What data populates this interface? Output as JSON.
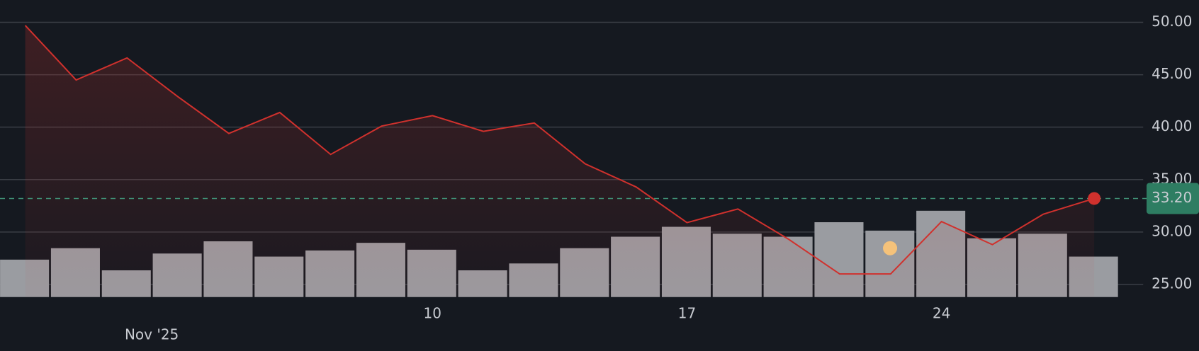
{
  "chart_data": {
    "type": "line",
    "categories": [
      null,
      null,
      null,
      null,
      null,
      null,
      null,
      null,
      "10",
      null,
      null,
      null,
      null,
      "17",
      null,
      null,
      null,
      null,
      "24",
      null,
      null,
      null
    ],
    "period_label": "Nov '25",
    "series": [
      {
        "name": "price",
        "color": "#d0312d",
        "values": [
          49.7,
          44.5,
          46.6,
          42.9,
          39.4,
          41.4,
          37.4,
          40.1,
          41.1,
          39.6,
          40.4,
          36.5,
          34.3,
          30.9,
          32.2,
          29.3,
          26.0,
          26.0,
          31.0,
          28.8,
          31.7,
          33.2
        ]
      },
      {
        "name": "volume",
        "type": "bar",
        "axis": "y2",
        "color": "#9a9ca1",
        "values": [
          49,
          64,
          35,
          57,
          73,
          53,
          61,
          71,
          62,
          35,
          44,
          64,
          79,
          92,
          83,
          79,
          98,
          87,
          113,
          77,
          83,
          53
        ]
      }
    ],
    "ylim": [
      23.8,
      50.96
    ],
    "yticks": [
      {
        "value": 25,
        "label": "25.00"
      },
      {
        "value": 30,
        "label": "30.00"
      },
      {
        "value": 35,
        "label": "35.00"
      },
      {
        "value": 40,
        "label": "40.00"
      },
      {
        "value": 45,
        "label": "45.00"
      },
      {
        "value": 50,
        "label": "50.00"
      }
    ],
    "y2lim": [
      0,
      373
    ],
    "last_value": {
      "value": 33.2,
      "label": "33.20"
    },
    "grid": true
  }
}
